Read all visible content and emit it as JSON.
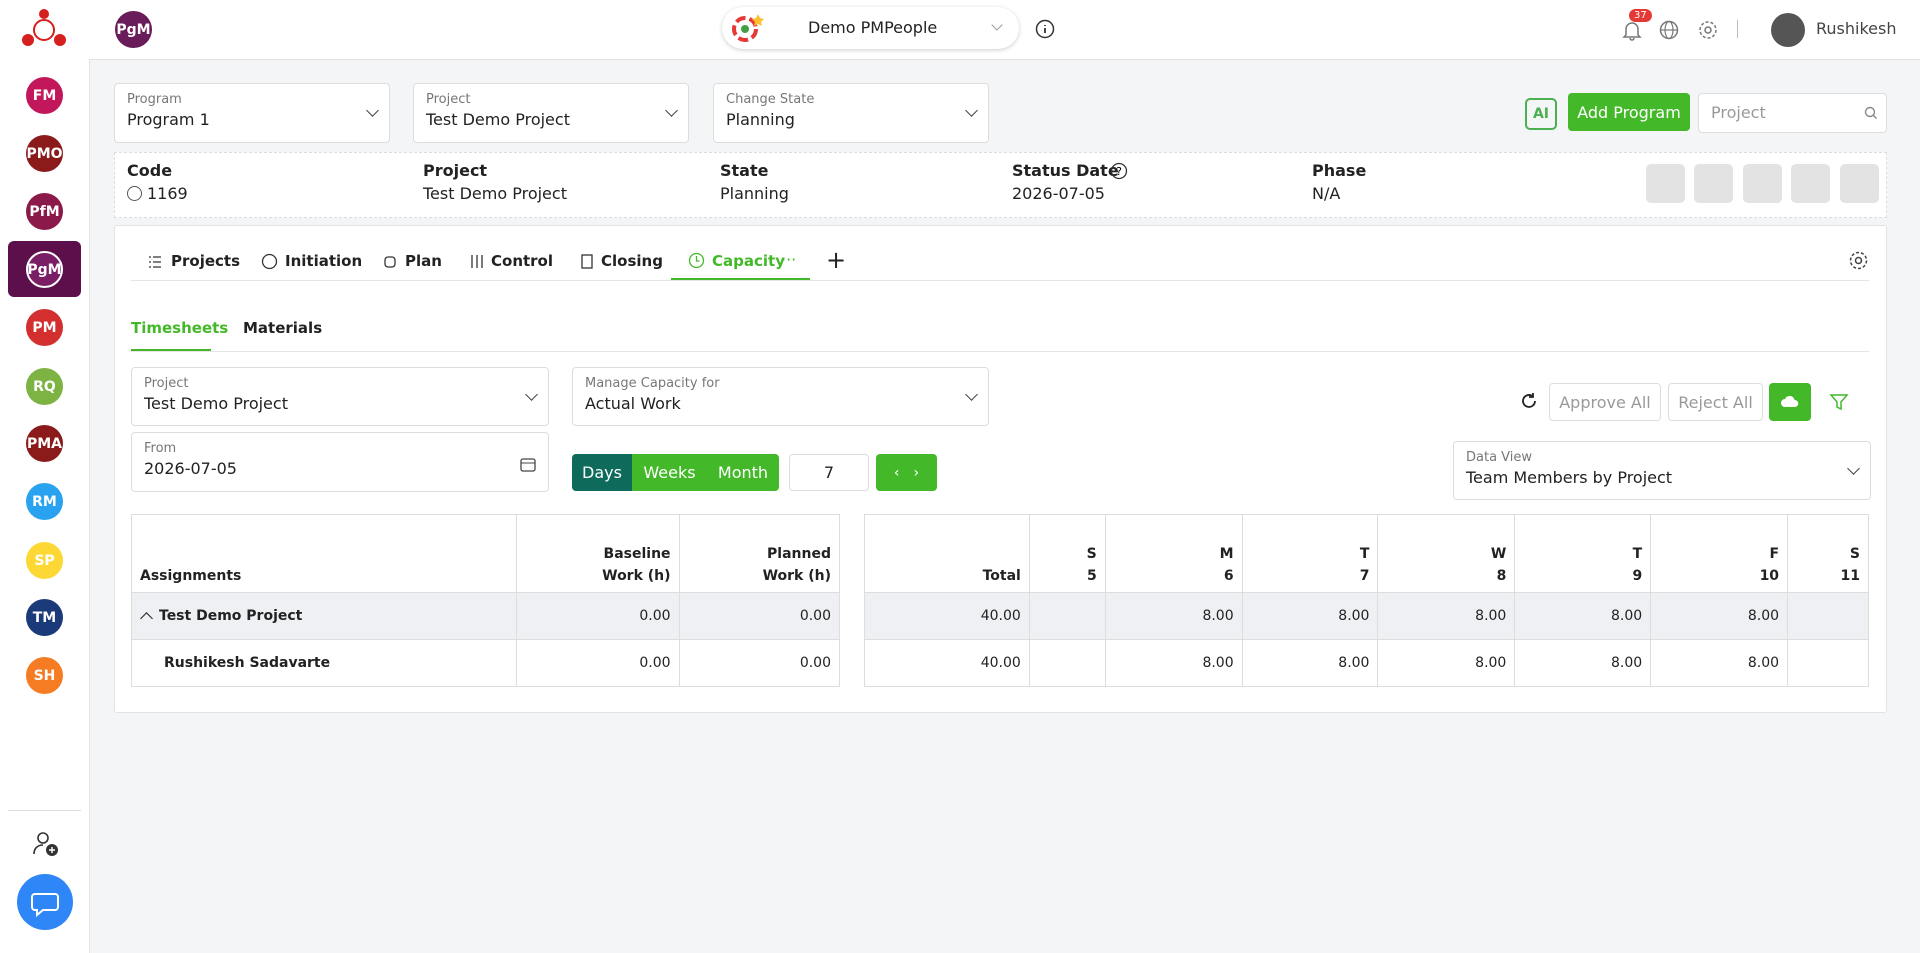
{
  "topbar": {
    "module": "PgM",
    "workspace": "Demo PMPeople",
    "notifications": "37",
    "user": "Rushikesh"
  },
  "sidebar": {
    "items": [
      "FM",
      "PMO",
      "PfM",
      "PgM",
      "PM",
      "RQ",
      "PMA",
      "RM",
      "SP",
      "TM",
      "SH"
    ]
  },
  "selectors": {
    "program": {
      "label": "Program",
      "value": "Program 1"
    },
    "project": {
      "label": "Project",
      "value": "Test Demo Project"
    },
    "state": {
      "label": "Change State",
      "value": "Planning"
    },
    "ai": "AI",
    "add": "Add Program",
    "search": "Project"
  },
  "info": {
    "code": {
      "label": "Code",
      "value": "1169"
    },
    "project": {
      "label": "Project",
      "value": "Test Demo Project"
    },
    "state": {
      "label": "State",
      "value": "Planning"
    },
    "status_date": {
      "label": "Status Date",
      "value": "2026-07-05"
    },
    "phase": {
      "label": "Phase",
      "value": "N/A"
    }
  },
  "tabs": [
    "Projects",
    "Initiation",
    "Plan",
    "Control",
    "Closing",
    "Capacity"
  ],
  "subtabs": [
    "Timesheets",
    "Materials"
  ],
  "filters": {
    "project": {
      "label": "Project",
      "value": "Test Demo Project"
    },
    "manage": {
      "label": "Manage Capacity for",
      "value": "Actual Work"
    },
    "from": {
      "label": "From",
      "value": "2026-07-05"
    },
    "periods": [
      "Days",
      "Weeks",
      "Month"
    ],
    "count": "7",
    "data_view": {
      "label": "Data View",
      "value": "Team Members by Project"
    },
    "approve": "Approve All",
    "reject": "Reject All"
  },
  "table": {
    "left_headers": [
      "Assignments",
      [
        "Baseline",
        "Work (h)"
      ],
      [
        "Planned",
        "Work (h)"
      ]
    ],
    "right_headers": [
      "Total",
      [
        "S",
        "5"
      ],
      [
        "M",
        "6"
      ],
      [
        "T",
        "7"
      ],
      [
        "W",
        "8"
      ],
      [
        "T",
        "9"
      ],
      [
        "F",
        "10"
      ],
      [
        "S",
        "11"
      ]
    ],
    "rows": [
      {
        "name": "Test Demo Project",
        "baseline": "0.00",
        "planned": "0.00",
        "total": "40.00",
        "days": [
          "",
          "8.00",
          "8.00",
          "8.00",
          "8.00",
          "8.00",
          ""
        ]
      },
      {
        "name": "Rushikesh Sadavarte",
        "baseline": "0.00",
        "planned": "0.00",
        "total": "40.00",
        "days": [
          "",
          "8.00",
          "8.00",
          "8.00",
          "8.00",
          "8.00",
          ""
        ]
      }
    ]
  }
}
